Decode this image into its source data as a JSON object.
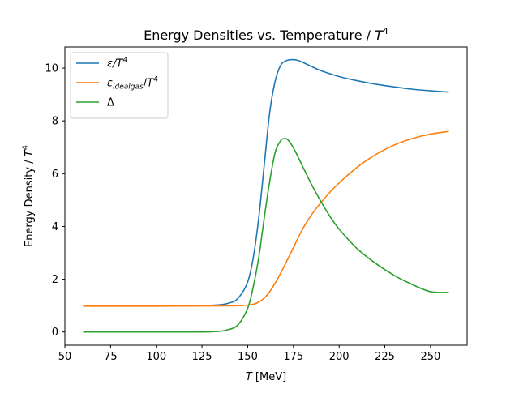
{
  "chart_data": {
    "type": "line",
    "title": {
      "pre": "Energy Densities vs. Temperature / ",
      "var": "T",
      "sup": "4"
    },
    "xlabel": {
      "var": "T",
      "post": " [MeV]"
    },
    "ylabel": {
      "pre": "Energy Density / ",
      "var": "T",
      "sup": "4"
    },
    "xlim": [
      50,
      270
    ],
    "ylim": [
      -0.5,
      10.8
    ],
    "xticks": [
      50,
      75,
      100,
      125,
      150,
      175,
      200,
      225,
      250
    ],
    "yticks": [
      0,
      2,
      4,
      6,
      8,
      10
    ],
    "grid": false,
    "legend_position": "top-left",
    "series": [
      {
        "name": "ε/T⁴",
        "legend": {
          "main": "ε/T",
          "sub": "",
          "tail": "",
          "sup": "4"
        },
        "color": "#1f77b4",
        "x": [
          60,
          100,
          130,
          140,
          145,
          150,
          153,
          156,
          159,
          162,
          165,
          168,
          171,
          174,
          177,
          180,
          185,
          190,
          200,
          210,
          220,
          230,
          240,
          250,
          260
        ],
        "y": [
          1.0,
          1.0,
          1.01,
          1.1,
          1.3,
          1.9,
          2.8,
          4.3,
          6.3,
          8.3,
          9.5,
          10.1,
          10.28,
          10.32,
          10.3,
          10.22,
          10.06,
          9.9,
          9.68,
          9.52,
          9.39,
          9.29,
          9.2,
          9.14,
          9.09
        ]
      },
      {
        "name": "ε_idealgas/T⁴",
        "legend": {
          "main": "ε",
          "sub": "idealgas",
          "tail": "/T",
          "sup": "4"
        },
        "color": "#ff7f0e",
        "x": [
          60,
          100,
          140,
          150,
          155,
          160,
          165,
          170,
          175,
          180,
          185,
          190,
          195,
          200,
          210,
          220,
          230,
          240,
          250,
          260
        ],
        "y": [
          0.98,
          0.98,
          0.99,
          1.02,
          1.1,
          1.35,
          1.85,
          2.5,
          3.2,
          3.9,
          4.45,
          4.9,
          5.3,
          5.65,
          6.25,
          6.72,
          7.08,
          7.33,
          7.5,
          7.6
        ]
      },
      {
        "name": "Δ",
        "legend": {
          "main": "Δ",
          "sub": "",
          "tail": "",
          "sup": ""
        },
        "color": "#2ca02c",
        "x": [
          60,
          100,
          130,
          140,
          145,
          150,
          153,
          156,
          159,
          162,
          165,
          168,
          170,
          172,
          175,
          180,
          185,
          190,
          195,
          200,
          210,
          220,
          230,
          240,
          250,
          260
        ],
        "y": [
          0.0,
          0.0,
          0.01,
          0.1,
          0.3,
          0.9,
          1.7,
          2.8,
          4.3,
          5.7,
          6.8,
          7.25,
          7.33,
          7.28,
          6.98,
          6.28,
          5.58,
          4.95,
          4.38,
          3.9,
          3.15,
          2.6,
          2.15,
          1.8,
          1.53,
          1.5
        ]
      }
    ]
  }
}
